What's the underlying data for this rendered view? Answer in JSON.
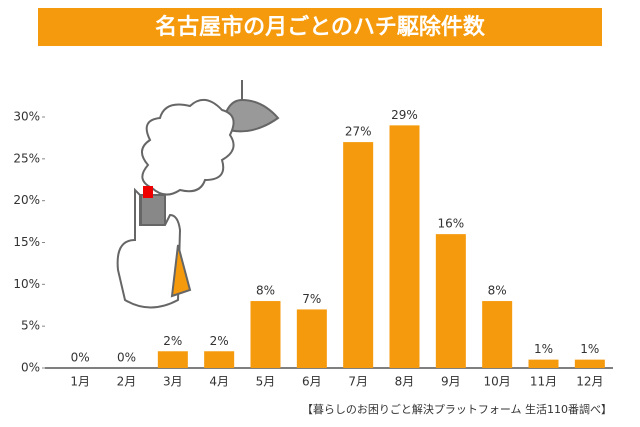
{
  "chart_data": {
    "type": "bar",
    "title": "名古屋市の月ごとのハチ駆除件数",
    "categories": [
      "1月",
      "2月",
      "3月",
      "4月",
      "5月",
      "6月",
      "7月",
      "8月",
      "9月",
      "10月",
      "11月",
      "12月"
    ],
    "values": [
      0,
      0,
      2,
      2,
      8,
      7,
      27,
      29,
      16,
      8,
      1,
      1
    ],
    "value_labels": [
      "0%",
      "0%",
      "2%",
      "2%",
      "8%",
      "7%",
      "27%",
      "29%",
      "16%",
      "8%",
      "1%",
      "1%"
    ],
    "color": "#f59a0c",
    "ylim": [
      0,
      30
    ],
    "yticks": [
      {
        "value": 0,
        "label": "0%"
      },
      {
        "value": 5,
        "label": "5%"
      },
      {
        "value": 10,
        "label": "10%"
      },
      {
        "value": 15,
        "label": "15%"
      },
      {
        "value": 20,
        "label": "20%"
      },
      {
        "value": 25,
        "label": "25%"
      },
      {
        "value": 30,
        "label": "30%"
      }
    ],
    "source": "【暮らしのお困りごと解決プラットフォーム 生活110番調べ】"
  }
}
